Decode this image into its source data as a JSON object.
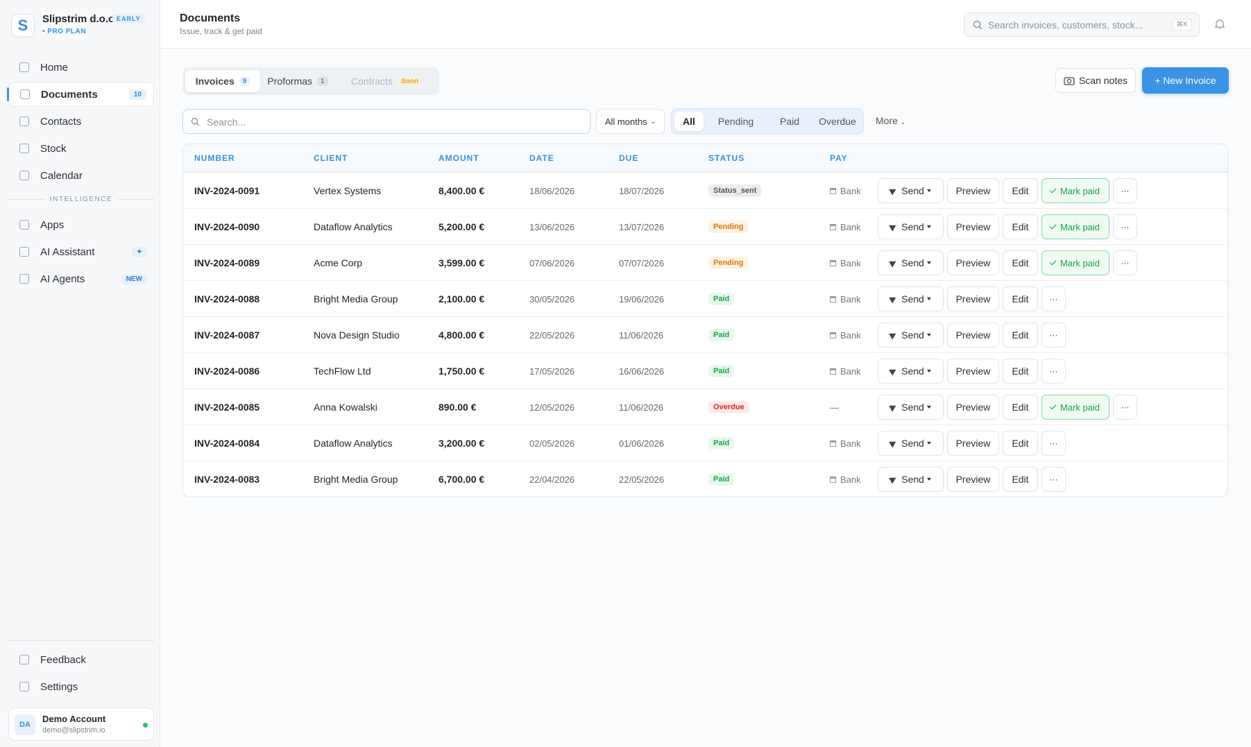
{
  "sidebar": {
    "logo": "S",
    "company": "Slipstrim d.o.o.",
    "badge": "EARLY",
    "plan": "PRO PLAN",
    "nav": [
      {
        "label": "Home"
      },
      {
        "label": "Documents",
        "count": "10"
      },
      {
        "label": "Contacts"
      },
      {
        "label": "Stock"
      },
      {
        "label": "Calendar"
      }
    ],
    "section": "INTELLIGENCE",
    "nav2": [
      {
        "label": "Apps"
      },
      {
        "label": "AI Assistant",
        "count": "✦"
      },
      {
        "label": "AI Agents",
        "count": "NEW"
      }
    ],
    "bottom": [
      {
        "label": "Feedback"
      },
      {
        "label": "Settings"
      }
    ],
    "account": {
      "initials": "DA",
      "name": "Demo Account",
      "email": "demo@slipstrim.io"
    }
  },
  "header": {
    "title": "Documents",
    "subtitle": "Issue, track & get paid",
    "search": "Search invoices, customers, stock...",
    "shortcut": "⌘K"
  },
  "tabs": [
    {
      "label": "Invoices",
      "count": "9"
    },
    {
      "label": "Proformas",
      "count": "1"
    },
    {
      "label": "Contracts",
      "count": "Soon"
    }
  ],
  "buttons": {
    "scan": "Scan notes",
    "new": "+ New Invoice"
  },
  "filters": {
    "search": "Search...",
    "months": "All months",
    "status": [
      "All",
      "Pending",
      "Paid",
      "Overdue"
    ],
    "more": "More"
  },
  "table": {
    "columns": [
      "NUMBER",
      "CLIENT",
      "AMOUNT",
      "DATE",
      "DUE",
      "STATUS",
      "PAY"
    ],
    "actions": {
      "send": "Send",
      "preview": "Preview",
      "edit": "Edit",
      "mark": "Mark paid",
      "more": "···"
    },
    "rows": [
      [
        "INV-2024-0091",
        "Vertex Systems",
        "8,400.00 €",
        "18/06/2026",
        "18/07/2026",
        "Status_sent",
        "Bank"
      ],
      [
        "INV-2024-0090",
        "Dataflow Analytics",
        "5,200.00 €",
        "13/06/2026",
        "13/07/2026",
        "Pending",
        "Bank"
      ],
      [
        "INV-2024-0089",
        "Acme Corp",
        "3,599.00 €",
        "07/06/2026",
        "07/07/2026",
        "Pending",
        "Bank"
      ],
      [
        "INV-2024-0088",
        "Bright Media Group",
        "2,100.00 €",
        "30/05/2026",
        "19/06/2026",
        "Paid",
        "Bank"
      ],
      [
        "INV-2024-0087",
        "Nova Design Studio",
        "4,800.00 €",
        "22/05/2026",
        "11/06/2026",
        "Paid",
        "Bank"
      ],
      [
        "INV-2024-0086",
        "TechFlow Ltd",
        "1,750.00 €",
        "17/05/2026",
        "16/06/2026",
        "Paid",
        "Bank"
      ],
      [
        "INV-2024-0085",
        "Anna Kowalski",
        "890.00 €",
        "12/05/2026",
        "11/06/2026",
        "Overdue",
        "—"
      ],
      [
        "INV-2024-0084",
        "Dataflow Analytics",
        "3,200.00 €",
        "02/05/2026",
        "01/06/2026",
        "Paid",
        "Bank"
      ],
      [
        "INV-2024-0083",
        "Bright Media Group",
        "6,700.00 €",
        "22/04/2026",
        "22/05/2026",
        "Paid",
        "Bank"
      ]
    ],
    "status_colors": [
      "#555555",
      "#d97706",
      "#d97706",
      "#16a34a",
      "#16a34a",
      "#16a34a",
      "#dc2626",
      "#16a34a",
      "#16a34a"
    ],
    "status_bg": [
      "#ececec",
      "#fdf3e3",
      "#fdf3e3",
      "#e9f7ee",
      "#e9f7ee",
      "#e9f7ee",
      "#fdeaea",
      "#e9f7ee",
      "#e9f7ee"
    ],
    "mark_paid": [
      true,
      true,
      true,
      false,
      false,
      false,
      true,
      false,
      false
    ]
  }
}
